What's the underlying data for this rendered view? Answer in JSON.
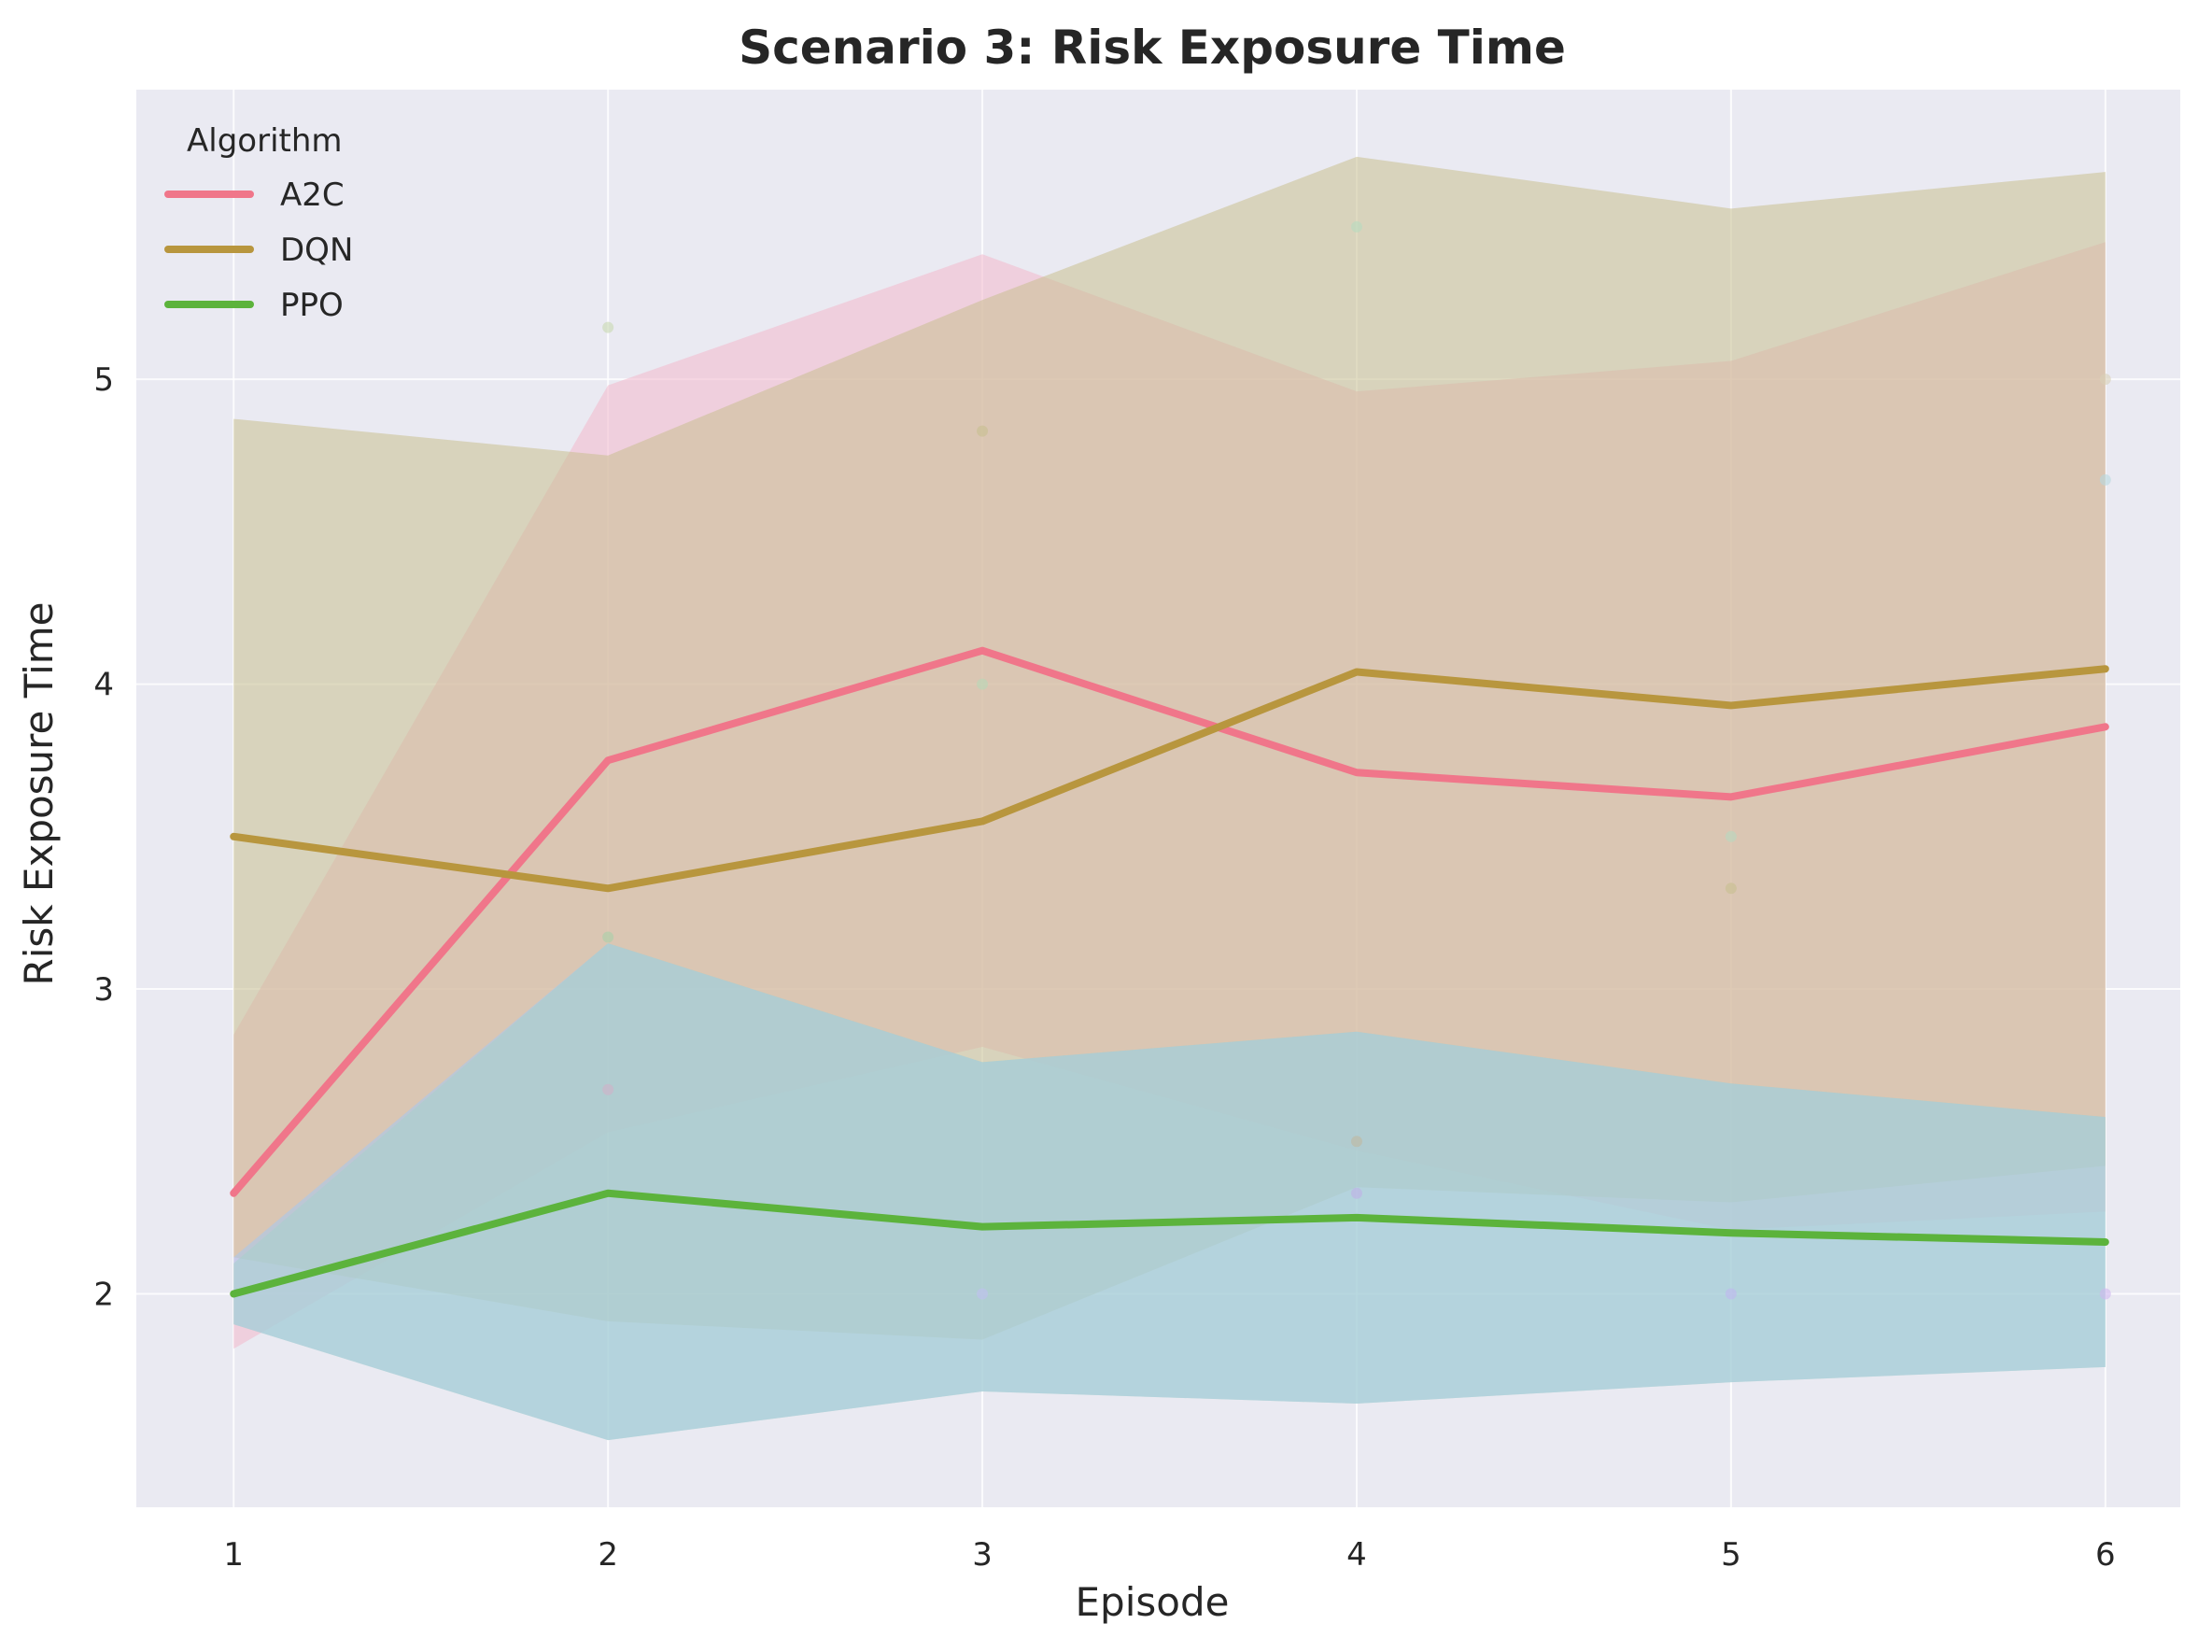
{
  "chart_data": {
    "type": "line",
    "title": "Scenario 3: Risk Exposure Time",
    "xlabel": "Episode",
    "ylabel": "Risk Exposure Time",
    "x": [
      1,
      2,
      3,
      4,
      5,
      6
    ],
    "xticks": [
      "1",
      "2",
      "3",
      "4",
      "5",
      "6"
    ],
    "yticks": [
      "2",
      "3",
      "4",
      "5"
    ],
    "xlim": [
      0.74,
      6.2
    ],
    "ylim": [
      1.3,
      5.95
    ],
    "grid": true,
    "legend": {
      "title": "Algorithm",
      "placement": "top-left"
    },
    "background_color": "#eaeaf2",
    "series": [
      {
        "name": "A2C",
        "color": "#f0768a",
        "band_color": "#f2b8cc",
        "values": [
          2.33,
          3.75,
          4.11,
          3.71,
          3.63,
          3.86
        ],
        "upper": [
          2.85,
          4.98,
          5.41,
          4.96,
          5.06,
          5.45
        ],
        "lower": [
          1.82,
          2.53,
          2.81,
          2.47,
          2.21,
          2.27
        ]
      },
      {
        "name": "DQN",
        "color": "#b8963e",
        "band_color": "#c8c090",
        "values": [
          3.5,
          3.33,
          3.55,
          4.04,
          3.93,
          4.05
        ],
        "upper": [
          4.87,
          4.75,
          5.26,
          5.73,
          5.56,
          5.68
        ],
        "lower": [
          2.12,
          1.91,
          1.85,
          2.35,
          2.3,
          2.42
        ]
      },
      {
        "name": "PPO",
        "color": "#5cb33c",
        "band_color": "#a8d8a0",
        "values": [
          2.0,
          2.33,
          2.22,
          2.25,
          2.2,
          2.17
        ],
        "upper": [
          2.1,
          3.15,
          2.76,
          2.86,
          2.69,
          2.58
        ],
        "lower": [
          1.9,
          1.52,
          1.68,
          1.64,
          1.71,
          1.76
        ]
      },
      {
        "color": "#5da8ec",
        "band_color": "#a6c8f0",
        "upper": [
          2.12,
          3.15,
          2.76,
          2.86,
          2.69,
          2.58
        ],
        "lower": [
          1.9,
          1.52,
          1.68,
          1.64,
          1.71,
          1.76
        ]
      }
    ],
    "points": [
      {
        "x": 2,
        "y": 5.17,
        "color": "#c8d8b0"
      },
      {
        "x": 3,
        "y": 4.83,
        "color": "#c8c090"
      },
      {
        "x": 3,
        "y": 4.0,
        "color": "#b8d8b8"
      },
      {
        "x": 4,
        "y": 5.5,
        "color": "#b8dcc0"
      },
      {
        "x": 6,
        "y": 5.0,
        "color": "#d8d0b8"
      },
      {
        "x": 6,
        "y": 4.67,
        "color": "#b8d8e0"
      },
      {
        "x": 5,
        "y": 3.5,
        "color": "#b8d8c0"
      },
      {
        "x": 5,
        "y": 3.33,
        "color": "#c8c090"
      },
      {
        "x": 2,
        "y": 3.17,
        "color": "#a8d0a8"
      },
      {
        "x": 2,
        "y": 2.67,
        "color": "#d0b0c8"
      },
      {
        "x": 4,
        "y": 2.5,
        "color": "#c0b8a0"
      },
      {
        "x": 4,
        "y": 2.33,
        "color": "#c0b0e8"
      },
      {
        "x": 3,
        "y": 2.0,
        "color": "#c0c0f0"
      },
      {
        "x": 5,
        "y": 2.0,
        "color": "#c0b8f0"
      },
      {
        "x": 6,
        "y": 2.0,
        "color": "#d0b8f0"
      }
    ]
  }
}
